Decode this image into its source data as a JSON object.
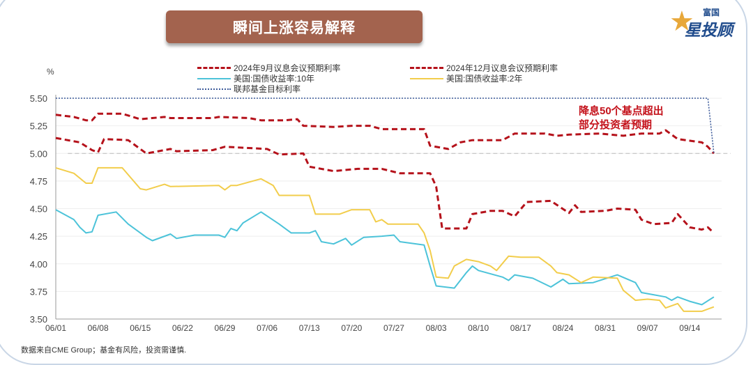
{
  "header": {
    "title": "瞬间上涨容易解释",
    "logo_text": "富国星投顾"
  },
  "annotation": [
    "降息50个基点超出",
    "部分投资者预期"
  ],
  "source": "数据来自CME Group；基金有风险，投资需谨慎.",
  "chart_data": {
    "type": "line",
    "ylabel": "%",
    "ylim": [
      3.5,
      5.5
    ],
    "yticks": [
      "5.50",
      "5.25",
      "5.00",
      "4.75",
      "4.50",
      "4.25",
      "4.00",
      "3.75",
      "3.50"
    ],
    "xticks": [
      "06/01",
      "06/08",
      "06/15",
      "06/22",
      "06/29",
      "07/06",
      "07/13",
      "07/20",
      "07/27",
      "08/03",
      "08/10",
      "08/17",
      "08/24",
      "08/31",
      "09/07",
      "09/14"
    ],
    "reference_line": {
      "value": 5.0,
      "color": "#bbbbbb",
      "style": "dashed"
    },
    "series": [
      {
        "name": "2024年9月议息会议预期利率",
        "color": "#b5121b",
        "style": "dashed",
        "points": [
          [
            "06/01",
            5.35
          ],
          [
            "06/04",
            5.33
          ],
          [
            "06/06",
            5.3
          ],
          [
            "06/07",
            5.3
          ],
          [
            "06/08",
            5.36
          ],
          [
            "06/12",
            5.36
          ],
          [
            "06/15",
            5.31
          ],
          [
            "06/19",
            5.33
          ],
          [
            "06/20",
            5.32
          ],
          [
            "06/27",
            5.32
          ],
          [
            "06/28",
            5.33
          ],
          [
            "07/03",
            5.32
          ],
          [
            "07/05",
            5.3
          ],
          [
            "07/09",
            5.3
          ],
          [
            "07/11",
            5.31
          ],
          [
            "07/12",
            5.25
          ],
          [
            "07/17",
            5.24
          ],
          [
            "07/20",
            5.25
          ],
          [
            "07/23",
            5.25
          ],
          [
            "07/25",
            5.22
          ],
          [
            "08/01",
            5.22
          ],
          [
            "08/02",
            5.07
          ],
          [
            "08/05",
            5.04
          ],
          [
            "08/07",
            5.1
          ],
          [
            "08/09",
            5.12
          ],
          [
            "08/14",
            5.12
          ],
          [
            "08/16",
            5.18
          ],
          [
            "08/21",
            5.18
          ],
          [
            "08/23",
            5.16
          ],
          [
            "08/25",
            5.17
          ],
          [
            "08/30",
            5.18
          ],
          [
            "09/03",
            5.16
          ],
          [
            "09/06",
            5.18
          ],
          [
            "09/09",
            5.18
          ],
          [
            "09/10",
            5.21
          ],
          [
            "09/12",
            5.13
          ],
          [
            "09/16",
            5.1
          ],
          [
            "09/17",
            5.06
          ],
          [
            "09/18",
            5.0
          ]
        ]
      },
      {
        "name": "2024年12月议息会议预期利率",
        "color": "#b5121b",
        "style": "dashed",
        "points": [
          [
            "06/01",
            5.14
          ],
          [
            "06/05",
            5.1
          ],
          [
            "06/07",
            5.03
          ],
          [
            "06/08",
            5.01
          ],
          [
            "06/09",
            5.13
          ],
          [
            "06/13",
            5.12
          ],
          [
            "06/16",
            5.0
          ],
          [
            "06/20",
            5.04
          ],
          [
            "06/21",
            5.02
          ],
          [
            "06/27",
            5.03
          ],
          [
            "06/29",
            5.06
          ],
          [
            "07/06",
            5.04
          ],
          [
            "07/08",
            4.99
          ],
          [
            "07/12",
            5.0
          ],
          [
            "07/13",
            4.88
          ],
          [
            "07/17",
            4.84
          ],
          [
            "07/21",
            4.86
          ],
          [
            "07/25",
            4.86
          ],
          [
            "07/28",
            4.82
          ],
          [
            "08/02",
            4.82
          ],
          [
            "08/03",
            4.7
          ],
          [
            "08/04",
            4.32
          ],
          [
            "08/08",
            4.32
          ],
          [
            "08/09",
            4.45
          ],
          [
            "08/12",
            4.48
          ],
          [
            "08/14",
            4.48
          ],
          [
            "08/16",
            4.43
          ],
          [
            "08/18",
            4.56
          ],
          [
            "08/22",
            4.57
          ],
          [
            "08/25",
            4.46
          ],
          [
            "08/26",
            4.53
          ],
          [
            "08/27",
            4.47
          ],
          [
            "08/31",
            4.48
          ],
          [
            "09/02",
            4.5
          ],
          [
            "09/05",
            4.49
          ],
          [
            "09/06",
            4.4
          ],
          [
            "09/08",
            4.36
          ],
          [
            "09/11",
            4.37
          ],
          [
            "09/12",
            4.45
          ],
          [
            "09/14",
            4.33
          ],
          [
            "09/16",
            4.31
          ],
          [
            "09/17",
            4.33
          ],
          [
            "09/18",
            4.28
          ]
        ]
      },
      {
        "name": "美国:国债收益率:10年",
        "color": "#4cc3d9",
        "style": "solid",
        "points": [
          [
            "06/01",
            4.49
          ],
          [
            "06/04",
            4.4
          ],
          [
            "06/05",
            4.33
          ],
          [
            "06/06",
            4.28
          ],
          [
            "06/07",
            4.29
          ],
          [
            "06/08",
            4.44
          ],
          [
            "06/11",
            4.47
          ],
          [
            "06/13",
            4.36
          ],
          [
            "06/16",
            4.24
          ],
          [
            "06/17",
            4.21
          ],
          [
            "06/20",
            4.27
          ],
          [
            "06/21",
            4.23
          ],
          [
            "06/24",
            4.26
          ],
          [
            "06/28",
            4.26
          ],
          [
            "06/29",
            4.24
          ],
          [
            "06/30",
            4.32
          ],
          [
            "07/01",
            4.3
          ],
          [
            "07/02",
            4.37
          ],
          [
            "07/05",
            4.47
          ],
          [
            "07/08",
            4.36
          ],
          [
            "07/10",
            4.28
          ],
          [
            "07/13",
            4.28
          ],
          [
            "07/14",
            4.3
          ],
          [
            "07/15",
            4.2
          ],
          [
            "07/17",
            4.18
          ],
          [
            "07/19",
            4.23
          ],
          [
            "07/20",
            4.17
          ],
          [
            "07/22",
            4.24
          ],
          [
            "07/25",
            4.25
          ],
          [
            "07/27",
            4.26
          ],
          [
            "07/28",
            4.2
          ],
          [
            "08/01",
            4.17
          ],
          [
            "08/02",
            3.98
          ],
          [
            "08/03",
            3.8
          ],
          [
            "08/06",
            3.78
          ],
          [
            "08/08",
            3.92
          ],
          [
            "08/09",
            3.98
          ],
          [
            "08/10",
            3.94
          ],
          [
            "08/14",
            3.88
          ],
          [
            "08/15",
            3.85
          ],
          [
            "08/16",
            3.9
          ],
          [
            "08/19",
            3.87
          ],
          [
            "08/22",
            3.79
          ],
          [
            "08/24",
            3.86
          ],
          [
            "08/25",
            3.82
          ],
          [
            "08/29",
            3.83
          ],
          [
            "09/02",
            3.9
          ],
          [
            "09/05",
            3.83
          ],
          [
            "09/06",
            3.74
          ],
          [
            "09/08",
            3.72
          ],
          [
            "09/10",
            3.7
          ],
          [
            "09/11",
            3.67
          ],
          [
            "09/12",
            3.7
          ],
          [
            "09/14",
            3.66
          ],
          [
            "09/16",
            3.63
          ],
          [
            "09/18",
            3.7
          ]
        ]
      },
      {
        "name": "美国:国债收益率:2年",
        "color": "#f2cd4b",
        "style": "solid",
        "points": [
          [
            "06/01",
            4.87
          ],
          [
            "06/04",
            4.82
          ],
          [
            "06/06",
            4.73
          ],
          [
            "06/07",
            4.73
          ],
          [
            "06/08",
            4.87
          ],
          [
            "06/12",
            4.87
          ],
          [
            "06/15",
            4.68
          ],
          [
            "06/16",
            4.67
          ],
          [
            "06/19",
            4.72
          ],
          [
            "06/20",
            4.7
          ],
          [
            "06/28",
            4.71
          ],
          [
            "06/29",
            4.67
          ],
          [
            "06/30",
            4.71
          ],
          [
            "07/01",
            4.71
          ],
          [
            "07/05",
            4.77
          ],
          [
            "07/07",
            4.71
          ],
          [
            "07/08",
            4.62
          ],
          [
            "07/13",
            4.62
          ],
          [
            "07/14",
            4.45
          ],
          [
            "07/18",
            4.45
          ],
          [
            "07/20",
            4.49
          ],
          [
            "07/23",
            4.49
          ],
          [
            "07/24",
            4.38
          ],
          [
            "07/25",
            4.4
          ],
          [
            "07/26",
            4.36
          ],
          [
            "07/31",
            4.36
          ],
          [
            "08/01",
            4.28
          ],
          [
            "08/02",
            4.12
          ],
          [
            "08/03",
            3.88
          ],
          [
            "08/05",
            3.87
          ],
          [
            "08/06",
            3.98
          ],
          [
            "08/08",
            4.04
          ],
          [
            "08/10",
            4.02
          ],
          [
            "08/12",
            3.98
          ],
          [
            "08/13",
            3.94
          ],
          [
            "08/15",
            4.07
          ],
          [
            "08/17",
            4.06
          ],
          [
            "08/20",
            4.06
          ],
          [
            "08/22",
            3.98
          ],
          [
            "08/23",
            3.92
          ],
          [
            "08/25",
            3.9
          ],
          [
            "08/27",
            3.83
          ],
          [
            "08/29",
            3.88
          ],
          [
            "09/02",
            3.87
          ],
          [
            "09/03",
            3.76
          ],
          [
            "09/05",
            3.67
          ],
          [
            "09/07",
            3.68
          ],
          [
            "09/09",
            3.67
          ],
          [
            "09/10",
            3.6
          ],
          [
            "09/12",
            3.64
          ],
          [
            "09/13",
            3.57
          ],
          [
            "09/16",
            3.57
          ],
          [
            "09/18",
            3.61
          ]
        ]
      },
      {
        "name": "联邦基金目标利率",
        "color": "#3c5a9a",
        "style": "dotted",
        "points": [
          [
            "06/01",
            5.5
          ],
          [
            "09/17",
            5.5
          ],
          [
            "09/18",
            5.0
          ]
        ]
      }
    ]
  }
}
